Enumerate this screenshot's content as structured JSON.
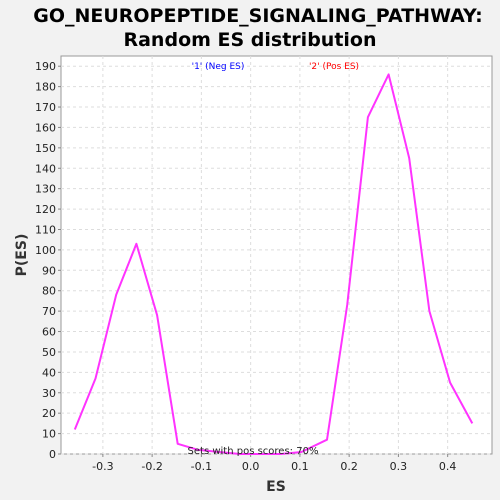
{
  "chart_data": {
    "type": "line",
    "title": "GO_NEUROPEPTIDE_SIGNALING_PATHWAY:",
    "subtitle": "Random ES distribution",
    "xlabel": "ES",
    "ylabel": "P(ES)",
    "xlim": [
      -0.385,
      0.49
    ],
    "ylim": [
      0,
      195
    ],
    "xticks": [
      -0.3,
      -0.2,
      -0.1,
      0.0,
      0.1,
      0.2,
      0.3,
      0.4
    ],
    "xtick_labels": [
      "-0.3",
      "-0.2",
      "-0.1",
      "0.0",
      "0.1",
      "0.2",
      "0.3",
      "0.4"
    ],
    "yticks": [
      0,
      10,
      20,
      30,
      40,
      50,
      60,
      70,
      80,
      90,
      100,
      110,
      120,
      130,
      140,
      150,
      160,
      170,
      180,
      190
    ],
    "grid": true,
    "legend_items": [
      {
        "label": "'1' (Neg ES)",
        "color": "#0000ff"
      },
      {
        "label": "'2' (Pos ES)",
        "color": "#ff0000"
      }
    ],
    "annotation": "Sets with pos scores: 70%",
    "series": [
      {
        "color": "#ff33ff",
        "x": [
          -0.357,
          -0.315,
          -0.273,
          -0.232,
          -0.19,
          -0.148,
          -0.106,
          -0.064,
          -0.022,
          0.02,
          0.061,
          0.103,
          0.155,
          0.196,
          0.238,
          0.28,
          0.322,
          0.363,
          0.405,
          0.45
        ],
        "y": [
          12,
          37,
          78,
          103,
          68,
          5,
          2,
          1,
          0,
          0,
          0,
          1,
          7,
          73,
          165,
          186,
          145,
          70,
          35,
          15
        ]
      }
    ]
  }
}
